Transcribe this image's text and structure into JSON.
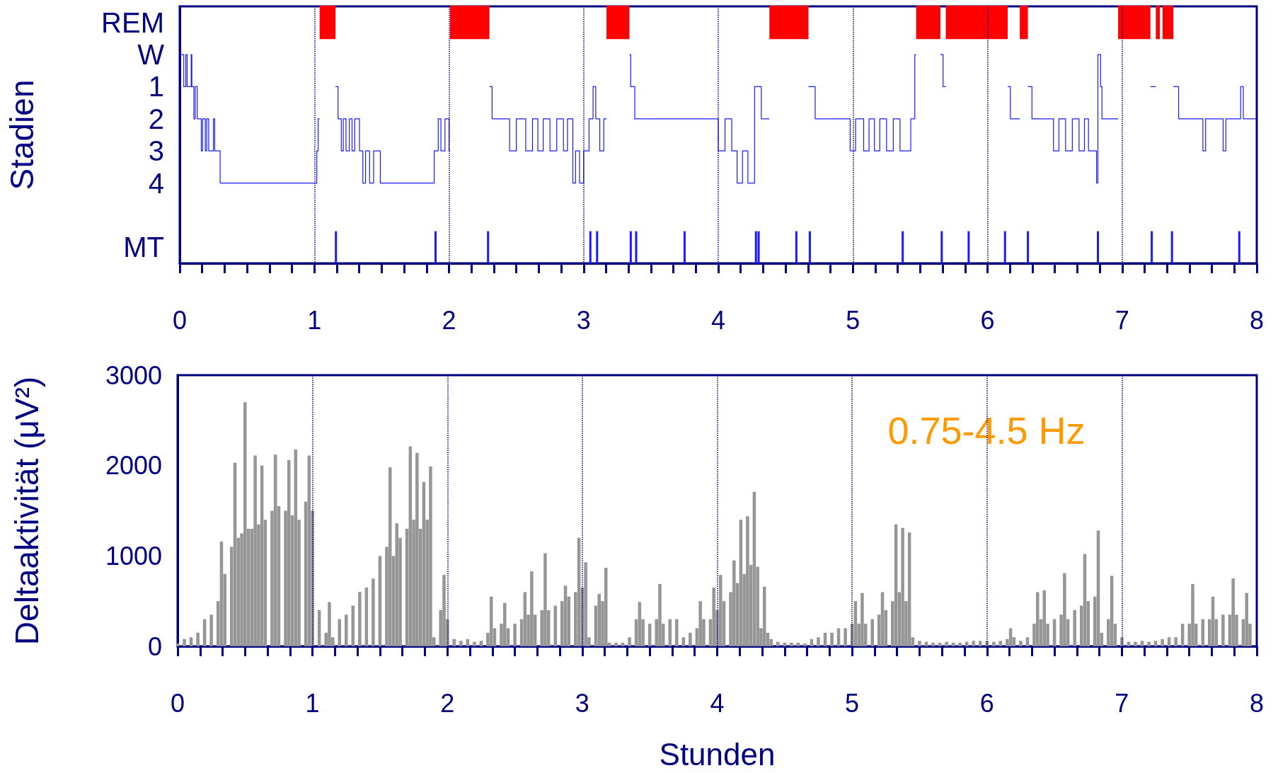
{
  "chart_data": [
    {
      "type": "step",
      "ylabel": "Stadien",
      "xlim": [
        0,
        8
      ],
      "ylim": [
        6.5,
        -1.5
      ],
      "grid": false,
      "yticks": [
        {
          "value": -1,
          "label": "REM"
        },
        {
          "value": 0,
          "label": "W"
        },
        1,
        2,
        3,
        4,
        {
          "value": 6,
          "label": "MT"
        }
      ],
      "xticks": [
        0,
        {
          "value": 0.1667,
          "label": null
        },
        {
          "value": 0.3333,
          "label": null
        },
        {
          "value": 0.5,
          "label": null
        },
        {
          "value": 0.6667,
          "label": null
        },
        {
          "value": 0.8333,
          "label": null
        },
        1,
        {
          "value": 1.1667,
          "label": null
        },
        {
          "value": 1.3333,
          "label": null
        },
        {
          "value": 1.5,
          "label": null
        },
        {
          "value": 1.6667,
          "label": null
        },
        {
          "value": 1.8333,
          "label": null
        },
        2,
        {
          "value": 2.1667,
          "label": null
        },
        {
          "value": 2.3333,
          "label": null
        },
        {
          "value": 2.5,
          "label": null
        },
        {
          "value": 2.6667,
          "label": null
        },
        {
          "value": 2.8333,
          "label": null
        },
        3,
        {
          "value": 3.1667,
          "label": null
        },
        {
          "value": 3.3333,
          "label": null
        },
        {
          "value": 3.5,
          "label": null
        },
        {
          "value": 3.6667,
          "label": null
        },
        {
          "value": 3.8333,
          "label": null
        },
        4,
        {
          "value": 4.1667,
          "label": null
        },
        {
          "value": 4.3333,
          "label": null
        },
        {
          "value": 4.5,
          "label": null
        },
        {
          "value": 4.6667,
          "label": null
        },
        {
          "value": 4.8333,
          "label": null
        },
        5,
        {
          "value": 5.1667,
          "label": null
        },
        {
          "value": 5.3333,
          "label": null
        },
        {
          "value": 5.5,
          "label": null
        },
        {
          "value": 5.6667,
          "label": null
        },
        {
          "value": 5.8333,
          "label": null
        },
        6,
        {
          "value": 6.1667,
          "label": null
        },
        {
          "value": 6.3333,
          "label": null
        },
        {
          "value": 6.5,
          "label": null
        },
        {
          "value": 6.6667,
          "label": null
        },
        {
          "value": 6.8333,
          "label": null
        },
        7,
        {
          "value": 7.1667,
          "label": null
        },
        {
          "value": 7.3333,
          "label": null
        },
        {
          "value": 7.5,
          "label": null
        },
        {
          "value": 7.6667,
          "label": null
        },
        {
          "value": 7.8333,
          "label": null
        },
        8
      ],
      "ref_lines": [
        {
          "axis": "x",
          "value": 1,
          "color": "#000080",
          "line_style": "dotted"
        },
        {
          "axis": "x",
          "value": 2,
          "color": "#000080",
          "line_style": "dotted"
        },
        {
          "axis": "x",
          "value": 3,
          "color": "#000080",
          "line_style": "dotted"
        },
        {
          "axis": "x",
          "value": 4,
          "color": "#000080",
          "line_style": "dotted"
        },
        {
          "axis": "x",
          "value": 5,
          "color": "#000080",
          "line_style": "dotted"
        },
        {
          "axis": "x",
          "value": 6,
          "color": "#000080",
          "line_style": "dotted"
        },
        {
          "axis": "x",
          "value": 7,
          "color": "#000080",
          "line_style": "dotted"
        }
      ],
      "series": [
        {
          "color": "#1a1aff",
          "x": [
            0,
            0.03,
            0.045,
            0.055,
            0.085,
            0.09,
            0.105,
            0.115,
            0.13,
            0.16,
            0.17,
            0.19,
            0.2,
            0.215,
            0.25,
            0.26,
            0.3,
            1.018,
            1.028,
            1.039,
            1.157,
            1.176,
            1.2,
            1.215,
            1.235,
            1.26,
            1.28,
            1.3,
            1.335,
            1.36,
            1.38,
            1.41,
            1.44,
            1.49,
            1.89,
            1.92,
            1.94,
            1.97,
            2.0,
            2.008,
            2.3,
            2.32,
            2.45,
            2.5,
            2.57,
            2.62,
            2.66,
            2.7,
            2.75,
            2.8,
            2.85,
            2.88,
            2.92,
            2.94,
            2.97,
            3.0,
            3.04,
            3.07,
            3.09,
            3.12,
            3.15,
            3.17,
            3.34,
            3.35,
            3.38,
            4.0,
            4.05,
            4.1,
            4.14,
            4.18,
            4.22,
            4.27,
            4.32,
            4.38,
            4.67,
            4.72,
            4.98,
            5.02,
            5.08,
            5.12,
            5.16,
            5.2,
            5.25,
            5.3,
            5.35,
            5.43,
            5.46,
            5.47,
            5.65,
            5.67,
            5.69,
            6.15,
            6.17,
            6.24,
            6.3,
            6.33,
            6.49,
            6.53,
            6.58,
            6.63,
            6.68,
            6.72,
            6.75,
            6.81,
            6.82,
            6.84,
            6.85,
            6.97,
            7.21,
            7.25,
            7.38,
            7.42,
            7.6,
            7.62,
            7.75,
            7.77,
            7.88,
            7.9,
            8
          ],
          "values": [
            0,
            1,
            0,
            1,
            0,
            1,
            2,
            1,
            2,
            3,
            2,
            3,
            2,
            3,
            2,
            3,
            4,
            3,
            2,
            null,
            1,
            2,
            3,
            2,
            3,
            2,
            3,
            2,
            3,
            4,
            3,
            4,
            3,
            4,
            3,
            2,
            3,
            2,
            3,
            null,
            1,
            2,
            3,
            2,
            3,
            2,
            3,
            2,
            3,
            2,
            3,
            2,
            4,
            3,
            4,
            3,
            2,
            1,
            2,
            3,
            2,
            null,
            0,
            1,
            2,
            3,
            2,
            3,
            4,
            3,
            4,
            1,
            2,
            null,
            1,
            2,
            3,
            2,
            3,
            2,
            3,
            2,
            3,
            2,
            3,
            2,
            0,
            null,
            0,
            1,
            null,
            1,
            2,
            null,
            1,
            2,
            3,
            2,
            3,
            2,
            3,
            2,
            3,
            4,
            0,
            1,
            2,
            null,
            1,
            null,
            1,
            2,
            3,
            2,
            3,
            2,
            1,
            2,
            2
          ]
        },
        {
          "color": "#ff0000",
          "x": [
            1.039,
            1.157,
            2.008,
            2.3,
            3.17,
            3.34,
            4.38,
            4.67,
            5.47,
            5.65,
            5.69,
            6.15,
            6.24,
            6.3,
            6.97,
            7.21,
            7.25,
            7.28,
            7.3,
            7.38
          ],
          "values": [
            -1,
            null,
            -1,
            null,
            -1,
            null,
            -1,
            null,
            -1,
            null,
            -1,
            null,
            -1,
            null,
            -1,
            null,
            -1,
            null,
            -1,
            -1
          ]
        },
        {
          "type": "bar",
          "color": "#1a1aff",
          "base": [
            5.5,
            5.5,
            5.5,
            5.5,
            5.5,
            5.5,
            5.5,
            5.5,
            5.5,
            5.5,
            5.5,
            5.5,
            5.5,
            5.5,
            5.5,
            5.5,
            5.5,
            5.5,
            5.5,
            5.5,
            5.5
          ],
          "x": [
            1.16,
            1.9,
            2.29,
            3.05,
            3.1,
            3.35,
            3.39,
            3.75,
            4.28,
            4.3,
            4.58,
            4.68,
            5.37,
            5.66,
            5.86,
            6.13,
            6.3,
            6.82,
            7.22,
            7.37,
            7.87
          ],
          "values": [
            1,
            1,
            1,
            1,
            1,
            1,
            1,
            1,
            1,
            1,
            1,
            1,
            1,
            1,
            1,
            1,
            1,
            1,
            1,
            1,
            1
          ]
        }
      ]
    },
    {
      "type": "bar",
      "xlabel": "Stunden",
      "ylabel": "Deltaaktivität (μV²)",
      "xlim": [
        0,
        8
      ],
      "ylim": [
        0,
        3000
      ],
      "yticks": [
        0,
        1000,
        2000,
        3000
      ],
      "grid": false,
      "xticks": [
        0,
        {
          "value": 0.1667,
          "label": null
        },
        {
          "value": 0.3333,
          "label": null
        },
        {
          "value": 0.5,
          "label": null
        },
        {
          "value": 0.6667,
          "label": null
        },
        {
          "value": 0.8333,
          "label": null
        },
        1,
        {
          "value": 1.1667,
          "label": null
        },
        {
          "value": 1.3333,
          "label": null
        },
        {
          "value": 1.5,
          "label": null
        },
        {
          "value": 1.6667,
          "label": null
        },
        {
          "value": 1.8333,
          "label": null
        },
        2,
        {
          "value": 2.1667,
          "label": null
        },
        {
          "value": 2.3333,
          "label": null
        },
        {
          "value": 2.5,
          "label": null
        },
        {
          "value": 2.6667,
          "label": null
        },
        {
          "value": 2.8333,
          "label": null
        },
        3,
        {
          "value": 3.1667,
          "label": null
        },
        {
          "value": 3.3333,
          "label": null
        },
        {
          "value": 3.5,
          "label": null
        },
        {
          "value": 3.6667,
          "label": null
        },
        {
          "value": 3.8333,
          "label": null
        },
        4,
        {
          "value": 4.1667,
          "label": null
        },
        {
          "value": 4.3333,
          "label": null
        },
        {
          "value": 4.5,
          "label": null
        },
        {
          "value": 4.6667,
          "label": null
        },
        {
          "value": 4.8333,
          "label": null
        },
        5,
        {
          "value": 5.1667,
          "label": null
        },
        {
          "value": 5.3333,
          "label": null
        },
        {
          "value": 5.5,
          "label": null
        },
        {
          "value": 5.6667,
          "label": null
        },
        {
          "value": 5.8333,
          "label": null
        },
        6,
        {
          "value": 6.1667,
          "label": null
        },
        {
          "value": 6.3333,
          "label": null
        },
        {
          "value": 6.5,
          "label": null
        },
        {
          "value": 6.6667,
          "label": null
        },
        {
          "value": 6.8333,
          "label": null
        },
        7,
        {
          "value": 7.1667,
          "label": null
        },
        {
          "value": 7.3333,
          "label": null
        },
        {
          "value": 7.5,
          "label": null
        },
        {
          "value": 7.6667,
          "label": null
        },
        {
          "value": 7.8333,
          "label": null
        },
        8
      ],
      "ref_lines": [
        {
          "axis": "x",
          "value": 1,
          "color": "#000080",
          "line_style": "dotted"
        },
        {
          "axis": "x",
          "value": 2,
          "color": "#000080",
          "line_style": "dotted"
        },
        {
          "axis": "x",
          "value": 3,
          "color": "#000080",
          "line_style": "dotted"
        },
        {
          "axis": "x",
          "value": 4,
          "color": "#000080",
          "line_style": "dotted"
        },
        {
          "axis": "x",
          "value": 5,
          "color": "#000080",
          "line_style": "dotted"
        },
        {
          "axis": "x",
          "value": 6,
          "color": "#000080",
          "line_style": "dotted"
        },
        {
          "axis": "x",
          "value": 7,
          "color": "#000080",
          "line_style": "dotted"
        }
      ],
      "annotations": [
        "0.75-4.5 Hz"
      ],
      "series": [
        {
          "color": "#969696",
          "x": [
            0,
            0.05,
            0.1,
            0.15,
            0.2,
            0.25,
            0.3,
            0.325,
            0.35,
            0.4,
            0.425,
            0.45,
            0.475,
            0.5,
            0.525,
            0.55,
            0.575,
            0.6,
            0.625,
            0.65,
            0.7,
            0.725,
            0.75,
            0.8,
            0.825,
            0.85,
            0.875,
            0.9,
            0.95,
            0.975,
            1.0,
            1.05,
            1.1,
            1.125,
            1.15,
            1.2,
            1.25,
            1.3,
            1.35,
            1.4,
            1.45,
            1.5,
            1.55,
            1.575,
            1.6,
            1.625,
            1.65,
            1.7,
            1.725,
            1.75,
            1.775,
            1.8,
            1.825,
            1.85,
            1.875,
            1.9,
            1.95,
            1.975,
            2.0,
            2.05,
            2.1,
            2.15,
            2.2,
            2.25,
            2.3,
            2.325,
            2.35,
            2.4,
            2.425,
            2.45,
            2.5,
            2.55,
            2.575,
            2.6,
            2.625,
            2.65,
            2.7,
            2.725,
            2.75,
            2.8,
            2.85,
            2.875,
            2.9,
            2.95,
            2.975,
            3.0,
            3.025,
            3.05,
            3.1,
            3.125,
            3.15,
            3.175,
            3.2,
            3.25,
            3.3,
            3.35,
            3.4,
            3.425,
            3.45,
            3.5,
            3.55,
            3.575,
            3.6,
            3.65,
            3.7,
            3.75,
            3.8,
            3.85,
            3.875,
            3.9,
            3.95,
            3.975,
            4.0,
            4.025,
            4.05,
            4.1,
            4.125,
            4.15,
            4.175,
            4.2,
            4.225,
            4.25,
            4.275,
            4.3,
            4.325,
            4.35,
            4.375,
            4.4,
            4.45,
            4.5,
            4.55,
            4.6,
            4.65,
            4.7,
            4.75,
            4.8,
            4.85,
            4.9,
            4.95,
            5.0,
            5.025,
            5.05,
            5.075,
            5.1,
            5.15,
            5.2,
            5.225,
            5.25,
            5.3,
            5.325,
            5.35,
            5.375,
            5.4,
            5.425,
            5.45,
            5.5,
            5.55,
            5.6,
            5.65,
            5.7,
            5.75,
            5.8,
            5.85,
            5.9,
            5.95,
            6.0,
            6.05,
            6.1,
            6.15,
            6.175,
            6.2,
            6.25,
            6.3,
            6.35,
            6.375,
            6.4,
            6.425,
            6.45,
            6.5,
            6.55,
            6.575,
            6.6,
            6.65,
            6.7,
            6.725,
            6.75,
            6.8,
            6.825,
            6.85,
            6.9,
            6.925,
            6.95,
            7.0,
            7.05,
            7.1,
            7.15,
            7.2,
            7.25,
            7.3,
            7.35,
            7.4,
            7.45,
            7.5,
            7.525,
            7.55,
            7.6,
            7.65,
            7.675,
            7.7,
            7.75,
            7.8,
            7.825,
            7.85,
            7.9,
            7.925,
            7.95
          ],
          "values": [
            30,
            80,
            100,
            150,
            300,
            350,
            500,
            1160,
            800,
            1100,
            2030,
            1200,
            1250,
            2700,
            1300,
            1300,
            2110,
            1350,
            2000,
            1400,
            1500,
            2120,
            1550,
            1500,
            2060,
            1450,
            2180,
            1400,
            1600,
            2110,
            1500,
            400,
            150,
            490,
            100,
            300,
            350,
            450,
            600,
            650,
            750,
            1000,
            1100,
            1980,
            1000,
            1360,
            1200,
            1300,
            2210,
            1400,
            2140,
            1300,
            1820,
            1400,
            1990,
            100,
            400,
            790,
            300,
            80,
            60,
            80,
            50,
            60,
            150,
            550,
            200,
            250,
            480,
            200,
            250,
            300,
            600,
            350,
            830,
            350,
            400,
            1030,
            400,
            450,
            500,
            670,
            550,
            600,
            1200,
            650,
            930,
            100,
            450,
            580,
            500,
            870,
            40,
            40,
            40,
            100,
            300,
            490,
            300,
            250,
            300,
            690,
            250,
            300,
            300,
            100,
            150,
            200,
            500,
            300,
            300,
            650,
            400,
            790,
            500,
            600,
            950,
            700,
            1400,
            800,
            1440,
            900,
            1710,
            880,
            200,
            660,
            150,
            80,
            50,
            40,
            40,
            40,
            30,
            80,
            100,
            150,
            150,
            200,
            200,
            250,
            500,
            250,
            590,
            250,
            300,
            350,
            600,
            400,
            500,
            1350,
            600,
            1310,
            500,
            1260,
            100,
            60,
            50,
            40,
            40,
            50,
            40,
            40,
            50,
            60,
            60,
            60,
            50,
            60,
            80,
            200,
            100,
            60,
            100,
            250,
            600,
            300,
            620,
            250,
            300,
            350,
            810,
            300,
            400,
            450,
            1020,
            500,
            550,
            1280,
            150,
            300,
            780,
            250,
            100,
            50,
            50,
            60,
            50,
            60,
            80,
            100,
            100,
            250,
            250,
            690,
            250,
            300,
            300,
            550,
            300,
            350,
            350,
            750,
            350,
            300,
            590,
            250
          ]
        }
      ]
    }
  ]
}
